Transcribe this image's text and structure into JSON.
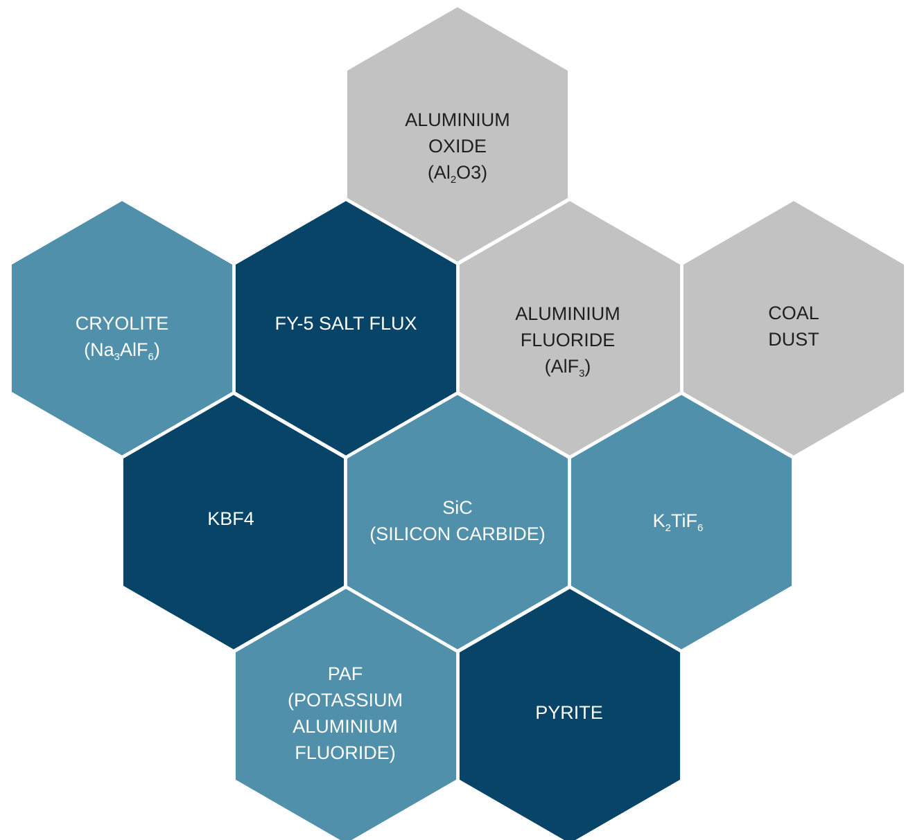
{
  "colors": {
    "gray": "#c2c2c2",
    "teal": "#5190ab",
    "navy": "#074468",
    "border": "#ffffff",
    "text_dark": "#1f1f1f",
    "text_light": "#ffffff"
  },
  "cells": {
    "al2o3": {
      "color": "gray",
      "lines": [
        [
          {
            "t": "ALUMINIUM"
          }
        ],
        [
          {
            "t": "OXIDE"
          }
        ],
        [
          {
            "t": "(Al"
          },
          {
            "t": "2",
            "sub": true
          },
          {
            "t": "O3)"
          }
        ]
      ]
    },
    "cryolite": {
      "color": "teal",
      "lines": [
        [
          {
            "t": "CRYOLITE"
          }
        ],
        [
          {
            "t": "(Na"
          },
          {
            "t": "3",
            "sub": true
          },
          {
            "t": "AlF"
          },
          {
            "t": "6",
            "sub": true
          },
          {
            "t": ")"
          }
        ]
      ]
    },
    "fy5": {
      "color": "navy",
      "lines": [
        [
          {
            "t": "FY-5 SALT FLUX"
          }
        ]
      ]
    },
    "alf3": {
      "color": "gray",
      "lines": [
        [
          {
            "t": "ALUMINIUM"
          }
        ],
        [
          {
            "t": "FLUORIDE"
          }
        ],
        [
          {
            "t": "(AlF"
          },
          {
            "t": "3",
            "sub": true
          },
          {
            "t": ")"
          }
        ]
      ]
    },
    "coal": {
      "color": "gray",
      "lines": [
        [
          {
            "t": "COAL"
          }
        ],
        [
          {
            "t": "DUST"
          }
        ]
      ]
    },
    "kbf4": {
      "color": "navy",
      "lines": [
        [
          {
            "t": "KBF4"
          }
        ]
      ]
    },
    "sic": {
      "color": "teal",
      "lines": [
        [
          {
            "t": "SiC"
          }
        ],
        [
          {
            "t": "(SILICON CARBIDE)"
          }
        ]
      ]
    },
    "k2tif6": {
      "color": "teal",
      "lines": [
        [
          {
            "t": "K"
          },
          {
            "t": "2",
            "sub": true
          },
          {
            "t": "TiF"
          },
          {
            "t": "6",
            "sub": true
          }
        ]
      ]
    },
    "paf": {
      "color": "teal",
      "lines": [
        [
          {
            "t": "PAF"
          }
        ],
        [
          {
            "t": "(POTASSIUM"
          }
        ],
        [
          {
            "t": "ALUMINIUM"
          }
        ],
        [
          {
            "t": "FLUORIDE)"
          }
        ]
      ]
    },
    "pyrite": {
      "color": "navy",
      "lines": [
        [
          {
            "t": "PYRITE"
          }
        ]
      ]
    }
  }
}
